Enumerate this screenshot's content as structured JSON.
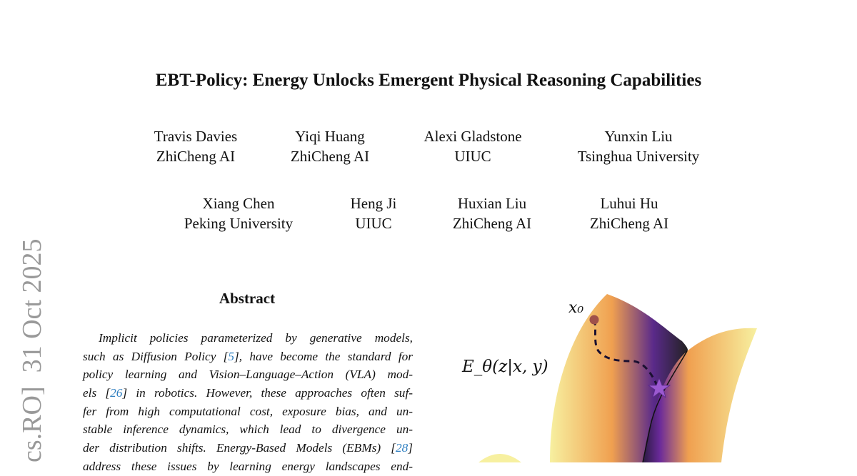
{
  "title": "EBT-Policy: Energy Unlocks Emergent Physical Reasoning Capabilities",
  "authors": [
    {
      "name": "Travis Davies",
      "affiliation": "ZhiCheng AI"
    },
    {
      "name": "Yiqi Huang",
      "affiliation": "ZhiCheng AI"
    },
    {
      "name": "Alexi Gladstone",
      "affiliation": "UIUC"
    },
    {
      "name": "Yunxin Liu",
      "affiliation": "Tsinghua University"
    },
    {
      "name": "Xiang Chen",
      "affiliation": "Peking University"
    },
    {
      "name": "Heng Ji",
      "affiliation": "UIUC"
    },
    {
      "name": "Huxian Liu",
      "affiliation": "ZhiCheng AI"
    },
    {
      "name": "Luhui Hu",
      "affiliation": "ZhiCheng AI"
    }
  ],
  "arxiv_stamp": "cs.RO]  31 Oct 2025",
  "abstract": {
    "heading": "Abstract",
    "lines": [
      [
        "Implicit policies parameterized by generative models,"
      ],
      [
        "such as Diffusion Policy [",
        "5",
        "], have become the standard for"
      ],
      [
        "policy learning and Vision–Language–Action (VLA) mod-"
      ],
      [
        "els [",
        "26",
        "] in robotics. However, these approaches often suf-"
      ],
      [
        "fer from high computational cost, exposure bias, and un-"
      ],
      [
        "stable inference dynamics, which lead to divergence un-"
      ],
      [
        "der distribution shifts. Energy-Based Models (EBMs) [",
        "28",
        "]"
      ],
      [
        "address these issues by learning energy landscapes end-"
      ]
    ]
  },
  "figure": {
    "start_label": "x₀",
    "energy_label": "E_θ(z|x, y)",
    "colors": {
      "light": "#f7f0a0",
      "mid": "#f0a050",
      "dark": "#5a2a8a",
      "valley": "#222222",
      "start_dot": "#a0504a",
      "star": "#9b59d0"
    }
  }
}
